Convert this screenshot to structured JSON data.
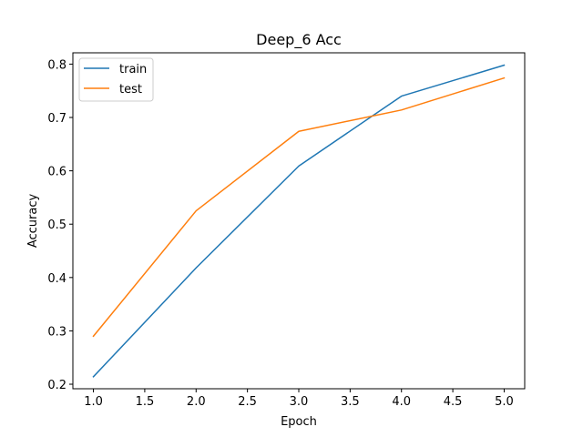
{
  "chart_data": {
    "type": "line",
    "title": "Deep_6 Acc",
    "xlabel": "Epoch",
    "ylabel": "Accuracy",
    "x": [
      1.0,
      2.0,
      3.0,
      4.0,
      5.0
    ],
    "series": [
      {
        "name": "train",
        "color": "#1f77b4",
        "values": [
          0.214,
          0.418,
          0.609,
          0.74,
          0.798
        ]
      },
      {
        "name": "test",
        "color": "#ff7f0e",
        "values": [
          0.29,
          0.525,
          0.674,
          0.714,
          0.774
        ]
      }
    ],
    "xlim": [
      0.8,
      5.2
    ],
    "ylim": [
      0.1915,
      0.8212
    ],
    "xticks": [
      1.0,
      1.5,
      2.0,
      2.5,
      3.0,
      3.5,
      4.0,
      4.5,
      5.0
    ],
    "xtick_labels": [
      "1.0",
      "1.5",
      "2.0",
      "2.5",
      "3.0",
      "3.5",
      "4.0",
      "4.5",
      "5.0"
    ],
    "yticks": [
      0.2,
      0.3,
      0.4,
      0.5,
      0.6,
      0.7,
      0.8
    ],
    "ytick_labels": [
      "0.2",
      "0.3",
      "0.4",
      "0.5",
      "0.6",
      "0.7",
      "0.8"
    ],
    "grid": false,
    "legend_position": "top-left"
  }
}
